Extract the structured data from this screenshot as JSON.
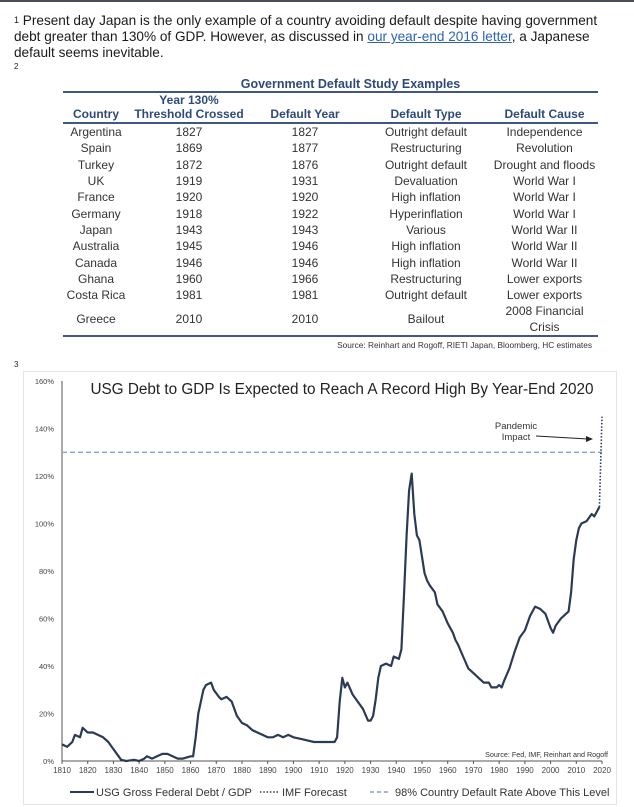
{
  "footnotes": {
    "note1": {
      "marker": "1",
      "text_before": " Present day Japan is the only example of a country avoiding default despite having government debt greater than 130% of GDP. However, as discussed in ",
      "link_text": "our year-end 2016 letter",
      "text_after": ", a Japanese default seems inevitable."
    },
    "note2_marker": "2",
    "note3_marker": "3"
  },
  "colors": {
    "link": "#2b63b5",
    "table_header": "#2e4a7a",
    "series_line": "#2c3a56",
    "threshold_line": "#8ea0cc"
  },
  "default_table": {
    "title": "Government Default Study Examples",
    "headers": {
      "country": "Country",
      "threshold_line1": "Year 130%",
      "threshold_line2": "Threshold Crossed",
      "default_year": "Default Year",
      "default_type": "Default Type",
      "default_cause": "Default Cause"
    },
    "rows": [
      [
        "Argentina",
        "1827",
        "1827",
        "Outright default",
        "Independence"
      ],
      [
        "Spain",
        "1869",
        "1877",
        "Restructuring",
        "Revolution"
      ],
      [
        "Turkey",
        "1872",
        "1876",
        "Outright default",
        "Drought and floods"
      ],
      [
        "UK",
        "1919",
        "1931",
        "Devaluation",
        "World War I"
      ],
      [
        "France",
        "1920",
        "1920",
        "High inflation",
        "World War I"
      ],
      [
        "Germany",
        "1918",
        "1922",
        "Hyperinflation",
        "World War I"
      ],
      [
        "Japan",
        "1943",
        "1943",
        "Various",
        "World War II"
      ],
      [
        "Australia",
        "1945",
        "1946",
        "High inflation",
        "World War II"
      ],
      [
        "Canada",
        "1946",
        "1946",
        "High inflation",
        "World War II"
      ],
      [
        "Ghana",
        "1960",
        "1966",
        "Restructuring",
        "Lower exports"
      ],
      [
        "Costa Rica",
        "1981",
        "1981",
        "Outright default",
        "Lower exports"
      ],
      [
        "Greece",
        "2010",
        "2010",
        "Bailout",
        "2008 Financial Crisis"
      ]
    ],
    "source": "Source: Reinhart and Rogoff,  RIETI Japan, Bloomberg, HC estimates"
  },
  "chart_data": {
    "type": "line",
    "title": "USG Debt to GDP Is Expected to Reach A Record High By Year-End 2020",
    "xlabel": "",
    "ylabel": "",
    "xlim": [
      1810,
      2020
    ],
    "ylim": [
      0,
      160
    ],
    "x_ticks": [
      "1810",
      "1820",
      "1830",
      "1840",
      "1850",
      "1860",
      "1870",
      "1880",
      "1890",
      "1900",
      "1910",
      "1920",
      "1930",
      "1940",
      "1950",
      "1960",
      "1970",
      "1980",
      "1990",
      "2000",
      "2010",
      "2020"
    ],
    "y_ticks": [
      "0%",
      "20%",
      "40%",
      "60%",
      "80%",
      "100%",
      "120%",
      "140%",
      "160%"
    ],
    "grid": false,
    "legend_position": "bottom",
    "source": "Source: Fed, IMF, Reinhart and Rogoff",
    "annotation": {
      "line1": "Pandemic",
      "line2": "Impact",
      "x": 2017,
      "y": 137
    },
    "series": [
      {
        "name": "USG Gross Federal Debt / GDP",
        "style": "solid",
        "points": [
          [
            1810,
            7
          ],
          [
            1812,
            6
          ],
          [
            1814,
            8
          ],
          [
            1815,
            11
          ],
          [
            1817,
            10
          ],
          [
            1818,
            14
          ],
          [
            1820,
            12
          ],
          [
            1822,
            12
          ],
          [
            1824,
            11
          ],
          [
            1826,
            10
          ],
          [
            1828,
            8
          ],
          [
            1830,
            5
          ],
          [
            1832,
            2
          ],
          [
            1833,
            0.5
          ],
          [
            1835,
            0
          ],
          [
            1838,
            0.5
          ],
          [
            1840,
            0
          ],
          [
            1842,
            1
          ],
          [
            1843,
            2
          ],
          [
            1845,
            1
          ],
          [
            1847,
            2
          ],
          [
            1849,
            3
          ],
          [
            1851,
            3
          ],
          [
            1853,
            2
          ],
          [
            1855,
            1
          ],
          [
            1857,
            1
          ],
          [
            1860,
            2
          ],
          [
            1861,
            2
          ],
          [
            1862,
            10
          ],
          [
            1863,
            20
          ],
          [
            1865,
            30
          ],
          [
            1866,
            32
          ],
          [
            1868,
            33
          ],
          [
            1869,
            30
          ],
          [
            1871,
            27
          ],
          [
            1872,
            26
          ],
          [
            1874,
            27
          ],
          [
            1876,
            25
          ],
          [
            1878,
            19
          ],
          [
            1880,
            16
          ],
          [
            1882,
            15
          ],
          [
            1884,
            13
          ],
          [
            1886,
            12
          ],
          [
            1888,
            11
          ],
          [
            1890,
            10
          ],
          [
            1892,
            10
          ],
          [
            1894,
            11
          ],
          [
            1896,
            10
          ],
          [
            1898,
            11
          ],
          [
            1900,
            10
          ],
          [
            1902,
            9.5
          ],
          [
            1904,
            9
          ],
          [
            1906,
            8.5
          ],
          [
            1908,
            8
          ],
          [
            1910,
            8
          ],
          [
            1912,
            8
          ],
          [
            1914,
            8
          ],
          [
            1916,
            8
          ],
          [
            1917,
            10
          ],
          [
            1918,
            25
          ],
          [
            1919,
            35
          ],
          [
            1920,
            31
          ],
          [
            1921,
            33
          ],
          [
            1923,
            28
          ],
          [
            1925,
            25
          ],
          [
            1927,
            22
          ],
          [
            1929,
            17
          ],
          [
            1930,
            17
          ],
          [
            1931,
            19
          ],
          [
            1932,
            26
          ],
          [
            1933,
            35
          ],
          [
            1934,
            40
          ],
          [
            1936,
            41
          ],
          [
            1938,
            40
          ],
          [
            1939,
            44
          ],
          [
            1941,
            43
          ],
          [
            1942,
            47
          ],
          [
            1943,
            70
          ],
          [
            1944,
            95
          ],
          [
            1945,
            114
          ],
          [
            1946,
            121
          ],
          [
            1947,
            104
          ],
          [
            1948,
            95
          ],
          [
            1949,
            93
          ],
          [
            1950,
            86
          ],
          [
            1951,
            79
          ],
          [
            1952,
            76
          ],
          [
            1953,
            74
          ],
          [
            1955,
            71
          ],
          [
            1956,
            66
          ],
          [
            1958,
            63
          ],
          [
            1960,
            58
          ],
          [
            1962,
            54
          ],
          [
            1963,
            51
          ],
          [
            1964,
            49
          ],
          [
            1966,
            44
          ],
          [
            1968,
            39
          ],
          [
            1970,
            37
          ],
          [
            1972,
            35
          ],
          [
            1974,
            33
          ],
          [
            1976,
            33
          ],
          [
            1977,
            31
          ],
          [
            1979,
            31
          ],
          [
            1980,
            32
          ],
          [
            1981,
            31
          ],
          [
            1982,
            34
          ],
          [
            1984,
            39
          ],
          [
            1986,
            46
          ],
          [
            1988,
            52
          ],
          [
            1990,
            55
          ],
          [
            1992,
            61
          ],
          [
            1994,
            65
          ],
          [
            1996,
            64
          ],
          [
            1998,
            62
          ],
          [
            2000,
            56
          ],
          [
            2001,
            54
          ],
          [
            2002,
            57
          ],
          [
            2004,
            60
          ],
          [
            2006,
            62
          ],
          [
            2007,
            63
          ],
          [
            2008,
            71
          ],
          [
            2009,
            85
          ],
          [
            2010,
            93
          ],
          [
            2011,
            98
          ],
          [
            2012,
            100
          ],
          [
            2014,
            101
          ],
          [
            2016,
            104
          ],
          [
            2017,
            103
          ],
          [
            2018,
            105
          ],
          [
            2019,
            107
          ]
        ]
      },
      {
        "name": "IMF Forecast",
        "style": "dotted",
        "points": [
          [
            2019,
            107
          ],
          [
            2020,
            145
          ]
        ]
      },
      {
        "name": "98% Country Default Rate Above This Level",
        "style": "dashed",
        "points": [
          [
            1810,
            130
          ],
          [
            2020,
            130
          ]
        ]
      }
    ]
  }
}
